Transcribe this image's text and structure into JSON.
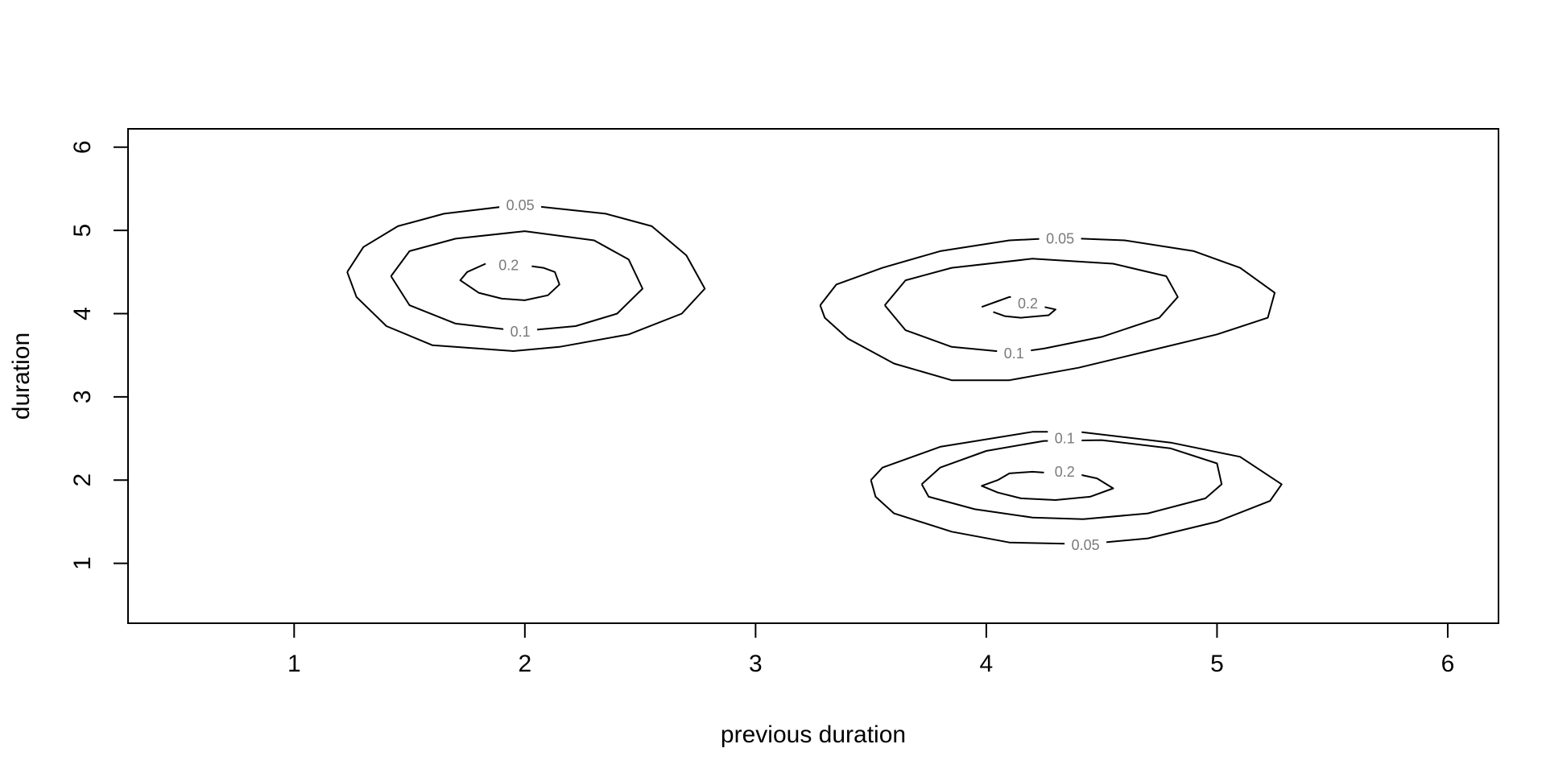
{
  "chart_data": {
    "type": "contour",
    "title": "",
    "xlabel": "previous duration",
    "ylabel": "duration",
    "xlim": [
      0.28,
      6.22
    ],
    "ylim": [
      0.28,
      6.22
    ],
    "xticks": [
      1,
      2,
      3,
      4,
      5,
      6
    ],
    "yticks": [
      1,
      2,
      3,
      4,
      5,
      6
    ],
    "grid": false,
    "line_color": "#000000",
    "label_color": "#7a7a7a",
    "contours": [
      {
        "level": "0.05",
        "label_at": [
          1.98,
          5.3
        ],
        "points": [
          [
            1.23,
            4.5
          ],
          [
            1.3,
            4.8
          ],
          [
            1.45,
            5.05
          ],
          [
            1.65,
            5.2
          ],
          [
            1.98,
            5.31
          ],
          [
            2.35,
            5.2
          ],
          [
            2.55,
            5.05
          ],
          [
            2.7,
            4.7
          ],
          [
            2.78,
            4.3
          ],
          [
            2.68,
            4.0
          ],
          [
            2.45,
            3.75
          ],
          [
            2.15,
            3.6
          ],
          [
            1.95,
            3.55
          ],
          [
            1.6,
            3.62
          ],
          [
            1.4,
            3.85
          ],
          [
            1.27,
            4.2
          ],
          [
            1.23,
            4.5
          ]
        ]
      },
      {
        "level": "0.1",
        "label_at": [
          1.98,
          3.78
        ],
        "points": [
          [
            1.42,
            4.45
          ],
          [
            1.5,
            4.75
          ],
          [
            1.7,
            4.9
          ],
          [
            2.0,
            4.99
          ],
          [
            2.3,
            4.88
          ],
          [
            2.45,
            4.65
          ],
          [
            2.51,
            4.3
          ],
          [
            2.4,
            4.0
          ],
          [
            2.22,
            3.85
          ],
          [
            1.98,
            3.79
          ],
          [
            1.7,
            3.88
          ],
          [
            1.5,
            4.1
          ],
          [
            1.42,
            4.45
          ]
        ]
      },
      {
        "level": "0.2",
        "label_at": [
          1.93,
          4.58
        ],
        "points": [
          [
            1.83,
            4.6
          ],
          [
            1.75,
            4.5
          ],
          [
            1.72,
            4.4
          ],
          [
            1.8,
            4.25
          ],
          [
            1.9,
            4.18
          ],
          [
            2.0,
            4.16
          ],
          [
            2.1,
            4.22
          ],
          [
            2.15,
            4.35
          ],
          [
            2.13,
            4.5
          ],
          [
            2.08,
            4.55
          ],
          [
            2.03,
            4.57
          ]
        ]
      },
      {
        "level": "0.05",
        "label_at": [
          4.32,
          4.9
        ],
        "points": [
          [
            3.28,
            4.1
          ],
          [
            3.35,
            4.35
          ],
          [
            3.55,
            4.55
          ],
          [
            3.8,
            4.75
          ],
          [
            4.1,
            4.88
          ],
          [
            4.32,
            4.91
          ],
          [
            4.6,
            4.88
          ],
          [
            4.9,
            4.75
          ],
          [
            5.1,
            4.55
          ],
          [
            5.25,
            4.25
          ],
          [
            5.22,
            3.95
          ],
          [
            5.0,
            3.75
          ],
          [
            4.7,
            3.55
          ],
          [
            4.4,
            3.35
          ],
          [
            4.1,
            3.2
          ],
          [
            3.85,
            3.2
          ],
          [
            3.6,
            3.4
          ],
          [
            3.4,
            3.7
          ],
          [
            3.3,
            3.95
          ],
          [
            3.28,
            4.1
          ]
        ]
      },
      {
        "level": "0.1",
        "label_at": [
          4.12,
          3.52
        ],
        "points": [
          [
            3.56,
            4.1
          ],
          [
            3.65,
            4.4
          ],
          [
            3.85,
            4.55
          ],
          [
            4.2,
            4.66
          ],
          [
            4.55,
            4.6
          ],
          [
            4.78,
            4.45
          ],
          [
            4.83,
            4.2
          ],
          [
            4.75,
            3.95
          ],
          [
            4.5,
            3.72
          ],
          [
            4.25,
            3.58
          ],
          [
            4.12,
            3.53
          ],
          [
            3.85,
            3.6
          ],
          [
            3.65,
            3.8
          ],
          [
            3.56,
            4.1
          ]
        ]
      },
      {
        "level": "0.2",
        "label_at": [
          4.18,
          4.12
        ],
        "points": [
          [
            3.98,
            4.08
          ],
          [
            4.05,
            4.15
          ],
          [
            4.1,
            4.2
          ],
          [
            4.15,
            4.18
          ],
          [
            4.25,
            4.08
          ],
          [
            4.3,
            4.05
          ],
          [
            4.27,
            3.98
          ],
          [
            4.15,
            3.95
          ],
          [
            4.08,
            3.97
          ],
          [
            4.03,
            4.02
          ]
        ]
      },
      {
        "level": "0.05",
        "label_at": [
          4.43,
          1.22
        ],
        "points": [
          [
            3.5,
            2.0
          ],
          [
            3.55,
            2.15
          ],
          [
            3.8,
            2.4
          ],
          [
            4.2,
            2.58
          ],
          [
            4.4,
            2.58
          ],
          [
            4.8,
            2.45
          ],
          [
            5.1,
            2.28
          ],
          [
            5.28,
            1.95
          ],
          [
            5.23,
            1.75
          ],
          [
            5.0,
            1.5
          ],
          [
            4.7,
            1.3
          ],
          [
            4.43,
            1.23
          ],
          [
            4.1,
            1.25
          ],
          [
            3.85,
            1.38
          ],
          [
            3.6,
            1.6
          ],
          [
            3.52,
            1.8
          ],
          [
            3.5,
            2.0
          ]
        ]
      },
      {
        "level": "0.1",
        "label_at": [
          4.34,
          2.5
        ],
        "points": [
          [
            3.72,
            1.95
          ],
          [
            3.8,
            2.15
          ],
          [
            4.0,
            2.35
          ],
          [
            4.25,
            2.47
          ],
          [
            4.5,
            2.48
          ],
          [
            4.8,
            2.38
          ],
          [
            5.0,
            2.2
          ],
          [
            5.02,
            1.95
          ],
          [
            4.95,
            1.78
          ],
          [
            4.7,
            1.6
          ],
          [
            4.42,
            1.53
          ],
          [
            4.2,
            1.55
          ],
          [
            3.95,
            1.65
          ],
          [
            3.75,
            1.8
          ],
          [
            3.72,
            1.95
          ]
        ]
      },
      {
        "level": "0.2",
        "label_at": [
          4.34,
          2.1
        ],
        "points": [
          [
            4.25,
            2.09
          ],
          [
            4.2,
            2.1
          ],
          [
            4.1,
            2.08
          ],
          [
            4.05,
            2.0
          ],
          [
            3.98,
            1.93
          ],
          [
            4.05,
            1.85
          ],
          [
            4.15,
            1.78
          ],
          [
            4.3,
            1.76
          ],
          [
            4.45,
            1.8
          ],
          [
            4.55,
            1.9
          ],
          [
            4.48,
            2.02
          ],
          [
            4.38,
            2.08
          ],
          [
            4.3,
            2.09
          ]
        ]
      }
    ]
  }
}
